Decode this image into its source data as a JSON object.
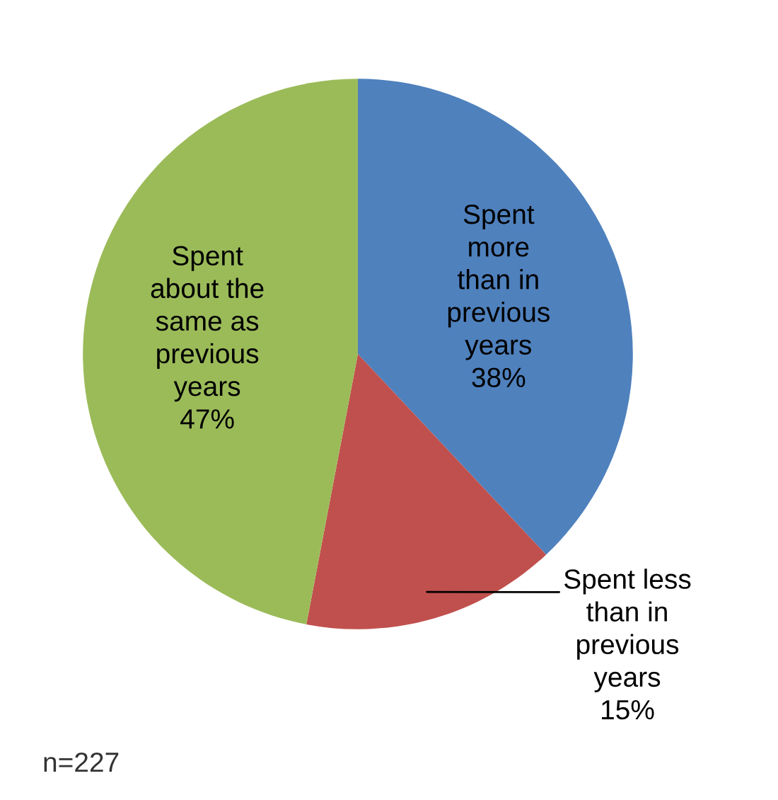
{
  "chart_data": {
    "type": "pie",
    "categories": [
      "Spent\nmore\nthan in\nprevious\nyears",
      "Spent less\nthan in\nprevious\nyears",
      "Spent\nabout the\nsame as\nprevious\nyears"
    ],
    "values": [
      38,
      15,
      47
    ],
    "value_labels": [
      "38%",
      "15%",
      "47%"
    ],
    "colors": [
      "#4f81bd",
      "#c0504d",
      "#9bbb59"
    ],
    "annotations": [
      "n=227"
    ],
    "legend": false
  }
}
